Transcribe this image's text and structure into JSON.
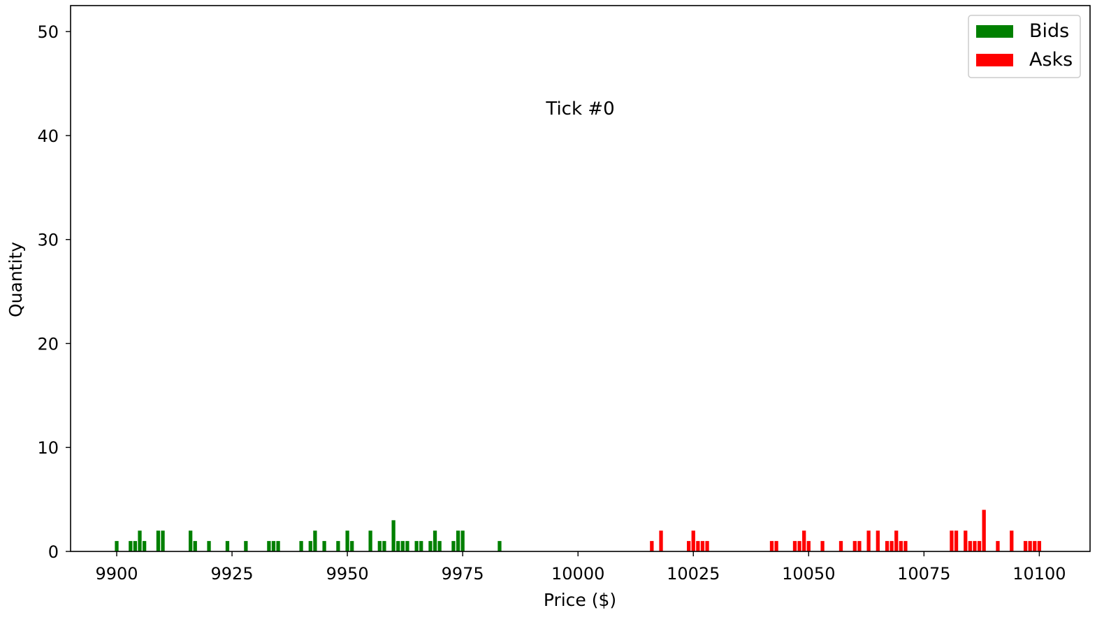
{
  "chart_data": {
    "type": "bar",
    "annotation": "Tick #0",
    "xlabel": "Price ($)",
    "ylabel": "Quantity",
    "xlim": [
      9890,
      10111
    ],
    "ylim": [
      0,
      52.5
    ],
    "xticks": [
      9900,
      9925,
      9950,
      9975,
      10000,
      10025,
      10050,
      10075,
      10100
    ],
    "yticks": [
      0,
      10,
      20,
      30,
      40,
      50
    ],
    "grid": false,
    "legend_position": "top-right",
    "bar_width": 0.8,
    "series": [
      {
        "name": "Bids",
        "color": "#008000",
        "x": [
          9900,
          9903,
          9904,
          9905,
          9906,
          9909,
          9910,
          9916,
          9917,
          9920,
          9924,
          9928,
          9933,
          9934,
          9935,
          9940,
          9942,
          9943,
          9945,
          9948,
          9950,
          9951,
          9955,
          9957,
          9958,
          9960,
          9961,
          9962,
          9963,
          9965,
          9966,
          9968,
          9969,
          9970,
          9973,
          9974,
          9975,
          9983
        ],
        "values": [
          1,
          1,
          1,
          2,
          1,
          2,
          2,
          2,
          1,
          1,
          1,
          1,
          1,
          1,
          1,
          1,
          1,
          2,
          1,
          1,
          2,
          1,
          2,
          1,
          1,
          3,
          1,
          1,
          1,
          1,
          1,
          1,
          2,
          1,
          1,
          2,
          2,
          1
        ]
      },
      {
        "name": "Asks",
        "color": "#ff0000",
        "x": [
          10016,
          10018,
          10024,
          10025,
          10026,
          10027,
          10028,
          10042,
          10043,
          10047,
          10048,
          10049,
          10050,
          10053,
          10057,
          10060,
          10061,
          10063,
          10065,
          10067,
          10068,
          10069,
          10070,
          10071,
          10081,
          10082,
          10084,
          10085,
          10086,
          10087,
          10088,
          10091,
          10094,
          10097,
          10098,
          10099,
          10100
        ],
        "values": [
          1,
          2,
          1,
          2,
          1,
          1,
          1,
          1,
          1,
          1,
          1,
          2,
          1,
          1,
          1,
          1,
          1,
          2,
          2,
          1,
          1,
          2,
          1,
          1,
          2,
          2,
          2,
          1,
          1,
          1,
          4,
          1,
          2,
          1,
          1,
          1,
          1
        ]
      }
    ]
  }
}
